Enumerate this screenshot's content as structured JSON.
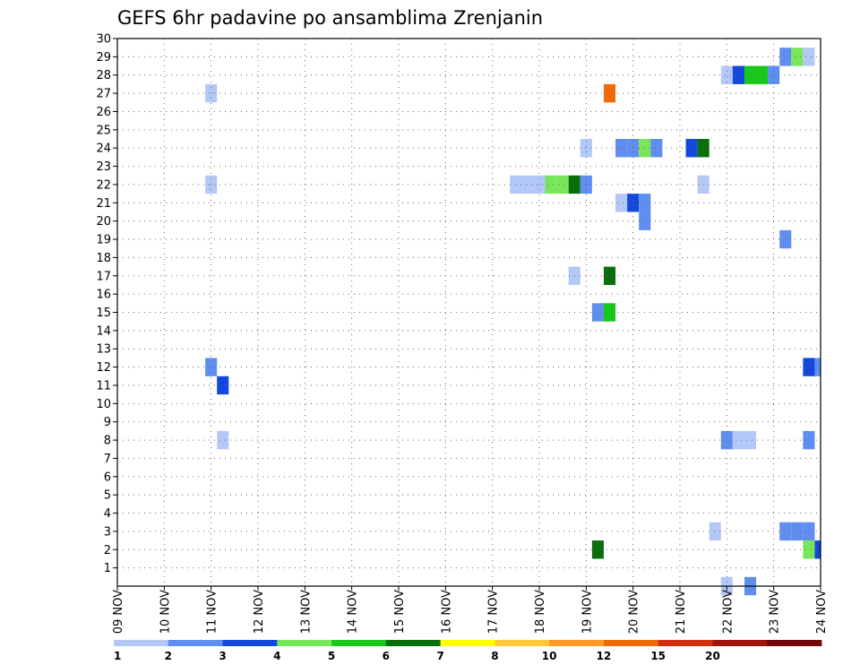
{
  "chart_data": {
    "type": "heatmap",
    "title": "GEFS 6hr padavine po ansamblima Zrenjanin",
    "xlabel": "",
    "ylabel": "",
    "x_ticks": [
      "09 NOV",
      "10 NOV",
      "11 NOV",
      "12 NOV",
      "13 NOV",
      "14 NOV",
      "15 NOV",
      "16 NOV",
      "17 NOV",
      "18 NOV",
      "19 NOV",
      "20 NOV",
      "21 NOV",
      "22 NOV",
      "23 NOV",
      "24 NOV"
    ],
    "y_ticks": [
      1,
      2,
      3,
      4,
      5,
      6,
      7,
      8,
      9,
      10,
      11,
      12,
      13,
      14,
      15,
      16,
      17,
      18,
      19,
      20,
      21,
      22,
      23,
      24,
      25,
      26,
      27,
      28,
      29,
      30
    ],
    "xlim": [
      0,
      60
    ],
    "ylim": [
      0,
      30
    ],
    "grid": true,
    "colorbar": {
      "levels": [
        "1",
        "2",
        "3",
        "4",
        "5",
        "6",
        "7",
        "8",
        "10",
        "12",
        "15",
        "20"
      ],
      "colors": [
        "#b4c8f8",
        "#5f8ef0",
        "#1448dc",
        "#78e65a",
        "#18c818",
        "#0a6e0a",
        "#ffff00",
        "#ffc83c",
        "#ff9a28",
        "#f06a0c",
        "#d22c10",
        "#a01410",
        "#6e0a0a"
      ]
    },
    "cells": [
      {
        "t": 8,
        "m": 27,
        "c": 0
      },
      {
        "t": 8,
        "m": 22,
        "c": 0
      },
      {
        "t": 8,
        "m": 12,
        "c": 1
      },
      {
        "t": 9,
        "m": 11,
        "c": 2
      },
      {
        "t": 9,
        "m": 8,
        "c": 0
      },
      {
        "t": 34,
        "m": 22,
        "c": 0
      },
      {
        "t": 35,
        "m": 22,
        "c": 0
      },
      {
        "t": 36,
        "m": 22,
        "c": 0
      },
      {
        "t": 37,
        "m": 22,
        "c": 3
      },
      {
        "t": 38,
        "m": 22,
        "c": 3
      },
      {
        "t": 39,
        "m": 22,
        "c": 5
      },
      {
        "t": 39,
        "m": 17,
        "c": 0
      },
      {
        "t": 40,
        "m": 22,
        "c": 1
      },
      {
        "t": 40,
        "m": 24,
        "c": 0
      },
      {
        "t": 41,
        "m": 15,
        "c": 1
      },
      {
        "t": 41,
        "m": 2,
        "c": 5
      },
      {
        "t": 42,
        "m": 27,
        "c": 9
      },
      {
        "t": 42,
        "m": 17,
        "c": 5
      },
      {
        "t": 42,
        "m": 15,
        "c": 4
      },
      {
        "t": 43,
        "m": 24,
        "c": 1
      },
      {
        "t": 43,
        "m": 21,
        "c": 0
      },
      {
        "t": 44,
        "m": 24,
        "c": 1
      },
      {
        "t": 44,
        "m": 21,
        "c": 2
      },
      {
        "t": 45,
        "m": 24,
        "c": 3
      },
      {
        "t": 45,
        "m": 21,
        "c": 1
      },
      {
        "t": 45,
        "m": 20,
        "c": 1
      },
      {
        "t": 46,
        "m": 24,
        "c": 1
      },
      {
        "t": 49,
        "m": 24,
        "c": 2
      },
      {
        "t": 50,
        "m": 24,
        "c": 5
      },
      {
        "t": 50,
        "m": 22,
        "c": 0
      },
      {
        "t": 51,
        "m": 3,
        "c": 0
      },
      {
        "t": 52,
        "m": 28,
        "c": 0
      },
      {
        "t": 52,
        "m": 8,
        "c": 1
      },
      {
        "t": 52,
        "m": 0,
        "c": 0
      },
      {
        "t": 53,
        "m": 28,
        "c": 2
      },
      {
        "t": 53,
        "m": 8,
        "c": 0
      },
      {
        "t": 54,
        "m": 28,
        "c": 4
      },
      {
        "t": 54,
        "m": 8,
        "c": 0
      },
      {
        "t": 54,
        "m": 0,
        "c": 1
      },
      {
        "t": 55,
        "m": 28,
        "c": 4
      },
      {
        "t": 56,
        "m": 28,
        "c": 1
      },
      {
        "t": 57,
        "m": 29,
        "c": 1
      },
      {
        "t": 57,
        "m": 19,
        "c": 1
      },
      {
        "t": 57,
        "m": 3,
        "c": 1
      },
      {
        "t": 58,
        "m": 29,
        "c": 3
      },
      {
        "t": 58,
        "m": 3,
        "c": 1
      },
      {
        "t": 59,
        "m": 29,
        "c": 0
      },
      {
        "t": 59,
        "m": 12,
        "c": 2
      },
      {
        "t": 59,
        "m": 8,
        "c": 1
      },
      {
        "t": 59,
        "m": 3,
        "c": 1
      },
      {
        "t": 59,
        "m": 2,
        "c": 3
      },
      {
        "t": 60,
        "m": 12,
        "c": 1
      },
      {
        "t": 60,
        "m": 2,
        "c": 2
      }
    ]
  }
}
